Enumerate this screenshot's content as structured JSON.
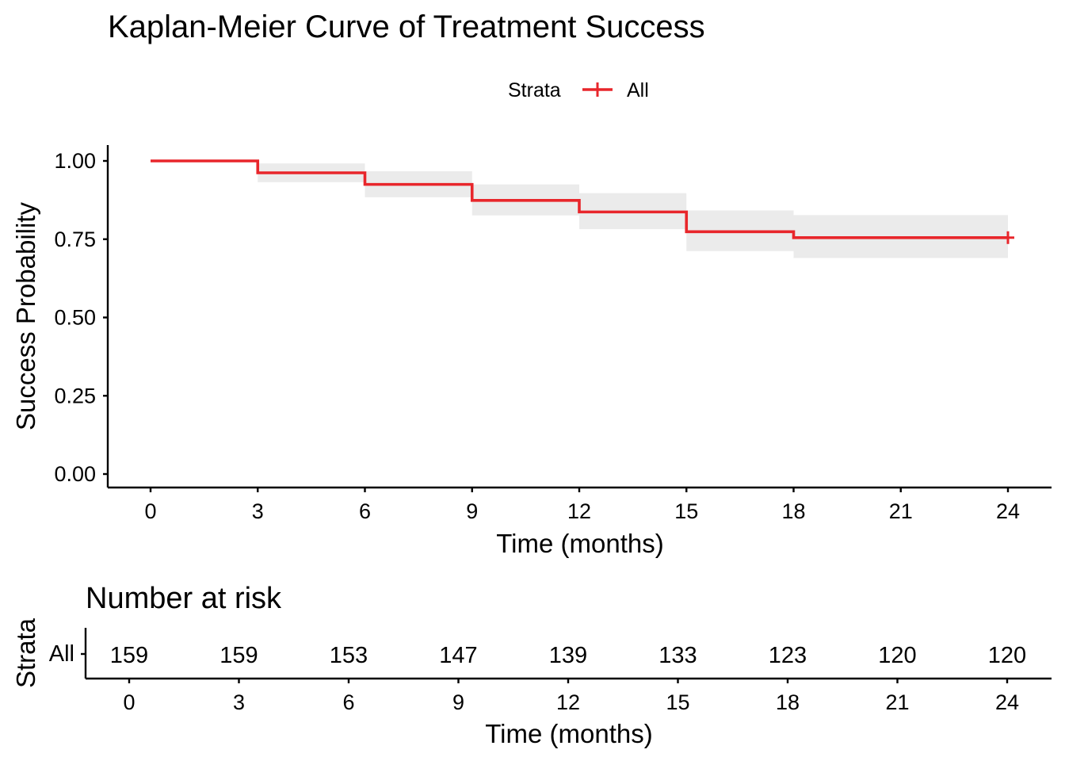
{
  "chart_data": [
    {
      "type": "line",
      "subtype": "kaplan-meier",
      "title": "Kaplan-Meier Curve of Treatment Success",
      "xlabel": "Time (months)",
      "ylabel": "Success Probability",
      "xlim": [
        0,
        24
      ],
      "ylim": [
        0,
        1
      ],
      "x_ticks": [
        0,
        3,
        6,
        9,
        12,
        15,
        18,
        21,
        24
      ],
      "y_ticks": [
        0,
        0.25,
        0.5,
        0.75,
        1.0
      ],
      "y_tick_labels": [
        "0.00",
        "0.25",
        "0.50",
        "0.75",
        "1.00"
      ],
      "grid": false,
      "legend": {
        "title": "Strata",
        "position": "top",
        "entries": [
          "All"
        ]
      },
      "series": [
        {
          "name": "All",
          "color": "#e8262b",
          "confidence_band_color": "#ebebeb",
          "steps": [
            {
              "x": 0,
              "survival": 1.0,
              "lower": 1.0,
              "upper": 1.0
            },
            {
              "x": 3,
              "survival": 0.962,
              "lower": 0.932,
              "upper": 0.992
            },
            {
              "x": 6,
              "survival": 0.925,
              "lower": 0.884,
              "upper": 0.967
            },
            {
              "x": 9,
              "survival": 0.874,
              "lower": 0.826,
              "upper": 0.925
            },
            {
              "x": 12,
              "survival": 0.837,
              "lower": 0.782,
              "upper": 0.897
            },
            {
              "x": 15,
              "survival": 0.774,
              "lower": 0.712,
              "upper": 0.842
            },
            {
              "x": 18,
              "survival": 0.755,
              "lower": 0.69,
              "upper": 0.827
            }
          ],
          "end_x": 24,
          "censored": [
            {
              "x": 24,
              "survival": 0.755
            }
          ]
        }
      ]
    },
    {
      "type": "table",
      "title": "Number at risk",
      "xlabel": "Time (months)",
      "ylabel": "Strata",
      "x_ticks": [
        0,
        3,
        6,
        9,
        12,
        15,
        18,
        21,
        24
      ],
      "rows": [
        {
          "strata": "All",
          "color": "#e8262b",
          "values": [
            159,
            159,
            153,
            147,
            139,
            133,
            123,
            120,
            120
          ]
        }
      ]
    }
  ]
}
